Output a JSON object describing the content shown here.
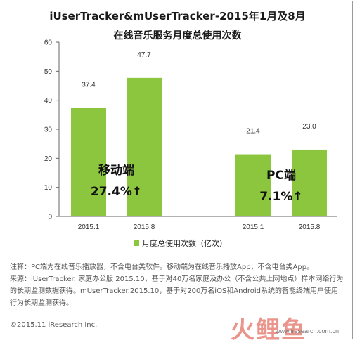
{
  "title_line1": "iUserTracker&mUserTracker-2015年1月及8月",
  "title_line2": "在线音乐服务月度总使用次数",
  "chart_data": {
    "type": "bar",
    "categories": [
      "2015.1",
      "2015.8",
      "2015.1",
      "2015.8"
    ],
    "series": [
      {
        "name": "月度总使用次数（亿次）",
        "values": [
          37.4,
          47.7,
          21.4,
          23.0
        ]
      }
    ],
    "value_labels": [
      "37.4",
      "47.7",
      "21.4",
      "23.0"
    ],
    "ylim": [
      0,
      60
    ],
    "yticks": [
      0,
      10,
      20,
      30,
      40,
      50,
      60
    ],
    "grid": false,
    "legend_position": "bottom",
    "bar_color": "#8cc63f",
    "annotations": [
      {
        "group": "mobile",
        "label": "移动端",
        "growth": "27.4%↑"
      },
      {
        "group": "pc",
        "label": "PC端",
        "growth": "7.1%↑"
      }
    ]
  },
  "legend_label": "月度总使用次数（亿次）",
  "note_line1": "注释：PC端为在线音乐播放器，不含电台类软件。移动端为在线音乐播放App，不含电台类App。",
  "note_line2": "来源：iUserTracker. 家庭办公版 2015.10，基于对40万名家庭及办公（不含公共上网地点）样本网络行为的长期监测数据获得。mUserTracker.2015.10，基于对200万名iOS和Android系统的智能终端用户使用行为长期监测获得。",
  "copyright": "©2015.11 iResearch Inc.",
  "watermark": "火鲤鱼",
  "watermark_url": "www.iresearch.com.cn"
}
